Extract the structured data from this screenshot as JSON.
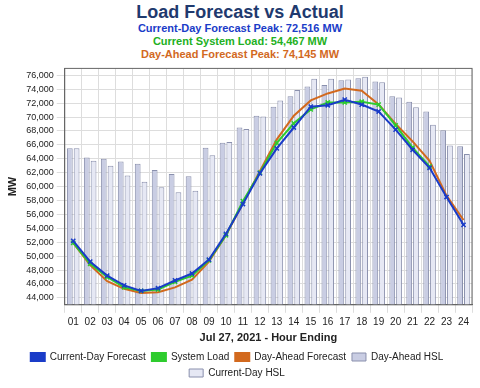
{
  "chart_data": {
    "type": "bar",
    "title": "Load Forecast vs Actual",
    "subtitle": [
      "Current-Day Forecast Peak: 72,516 MW",
      "Current System Load: 54,467 MW",
      "Day-Ahead Forecast Peak: 74,145 MW"
    ],
    "xlabel": "Jul 27, 2021 - Hour Ending",
    "ylabel": "MW",
    "categories": [
      "01",
      "02",
      "03",
      "04",
      "05",
      "06",
      "07",
      "08",
      "09",
      "10",
      "11",
      "12",
      "13",
      "14",
      "15",
      "16",
      "17",
      "18",
      "19",
      "20",
      "21",
      "22",
      "23",
      "24"
    ],
    "series": [
      {
        "name": "Current-Day Forecast",
        "type": "line",
        "color": "#1a3cc8",
        "marker": "cross",
        "values": [
          52200,
          49200,
          47200,
          45800,
          45000,
          45400,
          46500,
          47500,
          49500,
          53200,
          57500,
          61900,
          65500,
          68500,
          71500,
          71700,
          72500,
          71800,
          70800,
          68200,
          65300,
          62700,
          58500,
          54500
        ]
      },
      {
        "name": "System Load",
        "type": "line",
        "color": "#2ecc2e",
        "marker": "cross",
        "values": [
          51900,
          48900,
          47000,
          45500,
          45000,
          45200,
          46300,
          47200,
          49400,
          53000,
          57900,
          62000,
          66300,
          69100,
          71100,
          72100,
          72100,
          72200,
          71800,
          68800,
          65600,
          62900,
          null,
          null
        ]
      },
      {
        "name": "Day-Ahead Forecast",
        "type": "line",
        "color": "#d2691e",
        "marker": "none",
        "values": [
          51900,
          48700,
          46400,
          45300,
          44700,
          44800,
          45500,
          46600,
          49200,
          53000,
          57600,
          62200,
          66800,
          70200,
          72400,
          73400,
          74100,
          73800,
          71800,
          69000,
          66500,
          63700,
          58700,
          55200
        ]
      },
      {
        "name": "Day-Ahead HSL",
        "type": "bar",
        "color": "#c9cde3",
        "values": [
          65500,
          64200,
          64000,
          63600,
          63300,
          62400,
          61800,
          61500,
          65600,
          66300,
          68500,
          70200,
          71500,
          73000,
          74400,
          74600,
          75300,
          75600,
          75100,
          73000,
          72200,
          70800,
          68100,
          65800
        ]
      },
      {
        "name": "Current-Day HSL",
        "type": "bar",
        "color": "#e6e8f4",
        "values": [
          65500,
          63700,
          63000,
          61600,
          60700,
          59900,
          59200,
          59400,
          64500,
          66400,
          68300,
          70100,
          72400,
          73900,
          75500,
          75500,
          75400,
          75800,
          75000,
          72800,
          71400,
          68900,
          65900,
          64700
        ]
      }
    ],
    "ylim": [
      43000,
      77000
    ],
    "yticks": [
      {
        "value": 44000,
        "label": "44,000"
      },
      {
        "value": 46000,
        "label": "46,000"
      },
      {
        "value": 48000,
        "label": "48,000"
      },
      {
        "value": 50000,
        "label": "50,000"
      },
      {
        "value": 52000,
        "label": "52,000"
      },
      {
        "value": 54000,
        "label": "54,000"
      },
      {
        "value": 56000,
        "label": "56,000"
      },
      {
        "value": 58000,
        "label": "58,000"
      },
      {
        "value": 60000,
        "label": "60,000"
      },
      {
        "value": 62000,
        "label": "62,000"
      },
      {
        "value": 64000,
        "label": "64,000"
      },
      {
        "value": 66000,
        "label": "66,000"
      },
      {
        "value": 68000,
        "label": "68,000"
      },
      {
        "value": 70000,
        "label": "70,000"
      },
      {
        "value": 72000,
        "label": "72,000"
      },
      {
        "value": 74000,
        "label": "74,000"
      },
      {
        "value": 76000,
        "label": "76,000"
      }
    ],
    "grid": true,
    "legend": "bottom"
  }
}
